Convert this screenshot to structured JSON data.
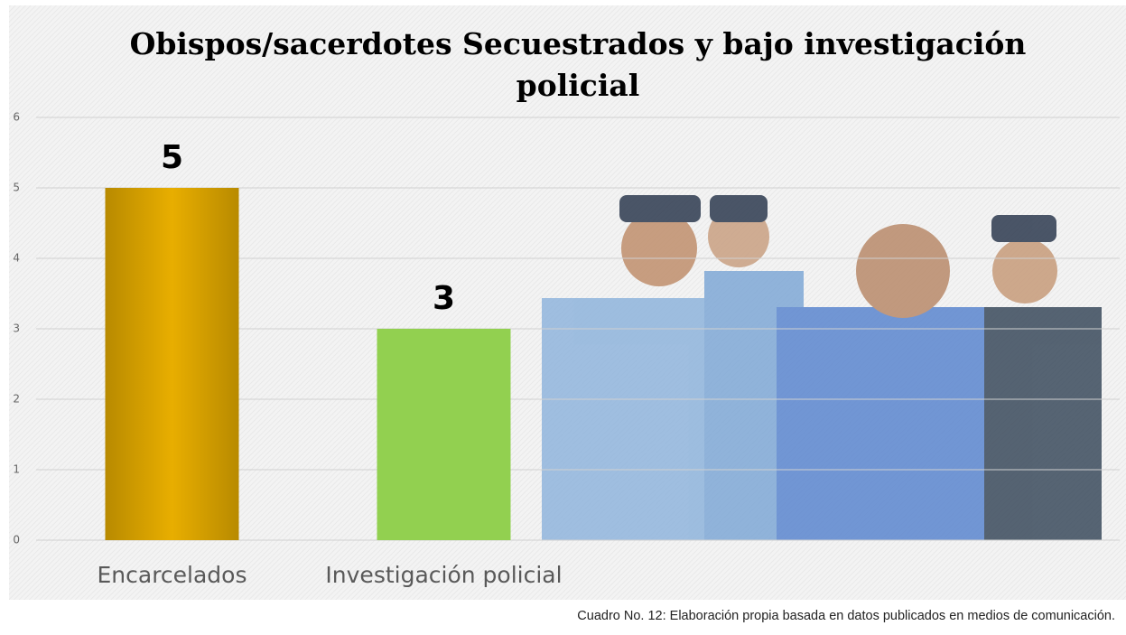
{
  "chart_data": {
    "type": "bar",
    "title": "Obispos/sacerdotes Secuestrados y bajo investigación policial",
    "categories": [
      "Encarcelados",
      "Investigación policial"
    ],
    "values": [
      5,
      3
    ],
    "colors": [
      "#d4a000",
      "#92d050"
    ],
    "ylim": [
      0,
      6
    ],
    "yticks": [
      0,
      1,
      2,
      3,
      4,
      5,
      6
    ],
    "grid": true,
    "caption": "Cuadro No. 12: Elaboración propia basada en datos publicados en medios de comunicación."
  }
}
